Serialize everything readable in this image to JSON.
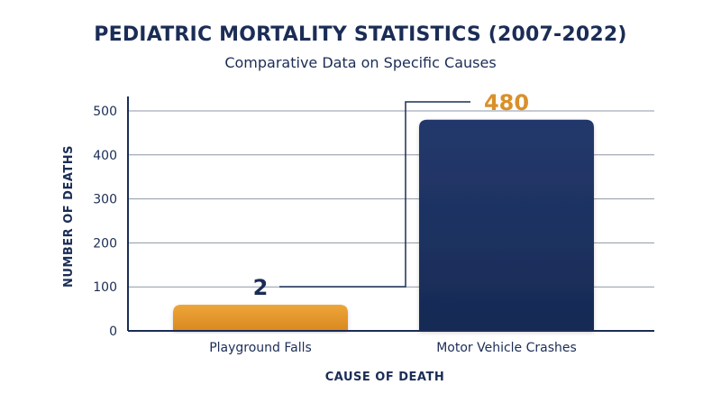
{
  "chart_data": {
    "type": "bar",
    "title": "PEDIATRIC MORTALITY STATISTICS (2007-2022)",
    "subtitle": "Comparative Data on Specific Causes",
    "xlabel": "CAUSE OF DEATH",
    "ylabel": "NUMBER OF DEATHS",
    "categories": [
      "Playground Falls",
      "Motor Vehicle Crashes"
    ],
    "values": [
      2,
      480
    ],
    "data_labels": [
      "2",
      "480"
    ],
    "ylim": [
      0,
      500
    ],
    "yticks": [
      0,
      100,
      200,
      300,
      400,
      500
    ],
    "grid": true,
    "legend": "none",
    "colors": [
      "#e3962a",
      "#1f3566"
    ],
    "label_colors": [
      "#1b2d56",
      "#d9902a"
    ],
    "axis_color": "#1b2d56"
  }
}
